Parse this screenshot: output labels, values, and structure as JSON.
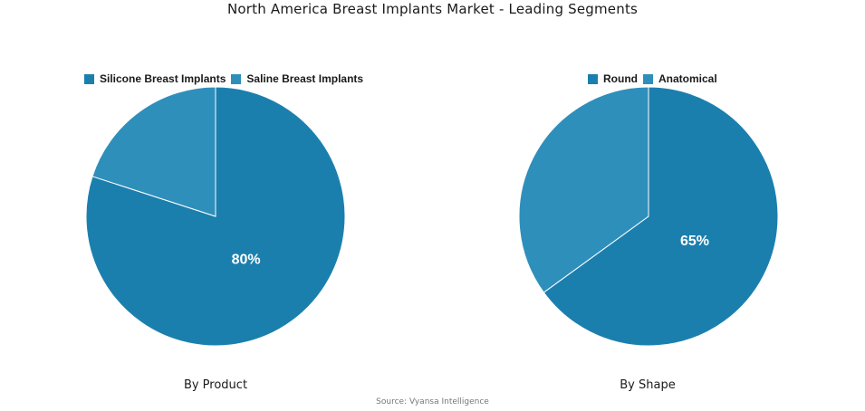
{
  "title": "North America Breast Implants Market - Leading Segments",
  "source": "Source: Vyansa Intelligence",
  "colors": {
    "primary": "#1b7fae",
    "secondary": "#2f8fbb",
    "divider": "#ffffff"
  },
  "chart_data": [
    {
      "type": "pie",
      "xlabel": "By Product",
      "legend_position": "top",
      "slices": [
        {
          "label": "Silicone Breast Implants",
          "value": 80,
          "value_label": "80%",
          "color": "#1b7fae",
          "show_label": true
        },
        {
          "label": "Saline Breast Implants",
          "value": 20,
          "value_label": "20%",
          "color": "#2f8fbb",
          "show_label": false
        }
      ]
    },
    {
      "type": "pie",
      "xlabel": "By Shape",
      "legend_position": "top",
      "slices": [
        {
          "label": "Round",
          "value": 65,
          "value_label": "65%",
          "color": "#1b7fae",
          "show_label": true
        },
        {
          "label": "Anatomical",
          "value": 35,
          "value_label": "35%",
          "color": "#2f8fbb",
          "show_label": false
        }
      ]
    }
  ]
}
